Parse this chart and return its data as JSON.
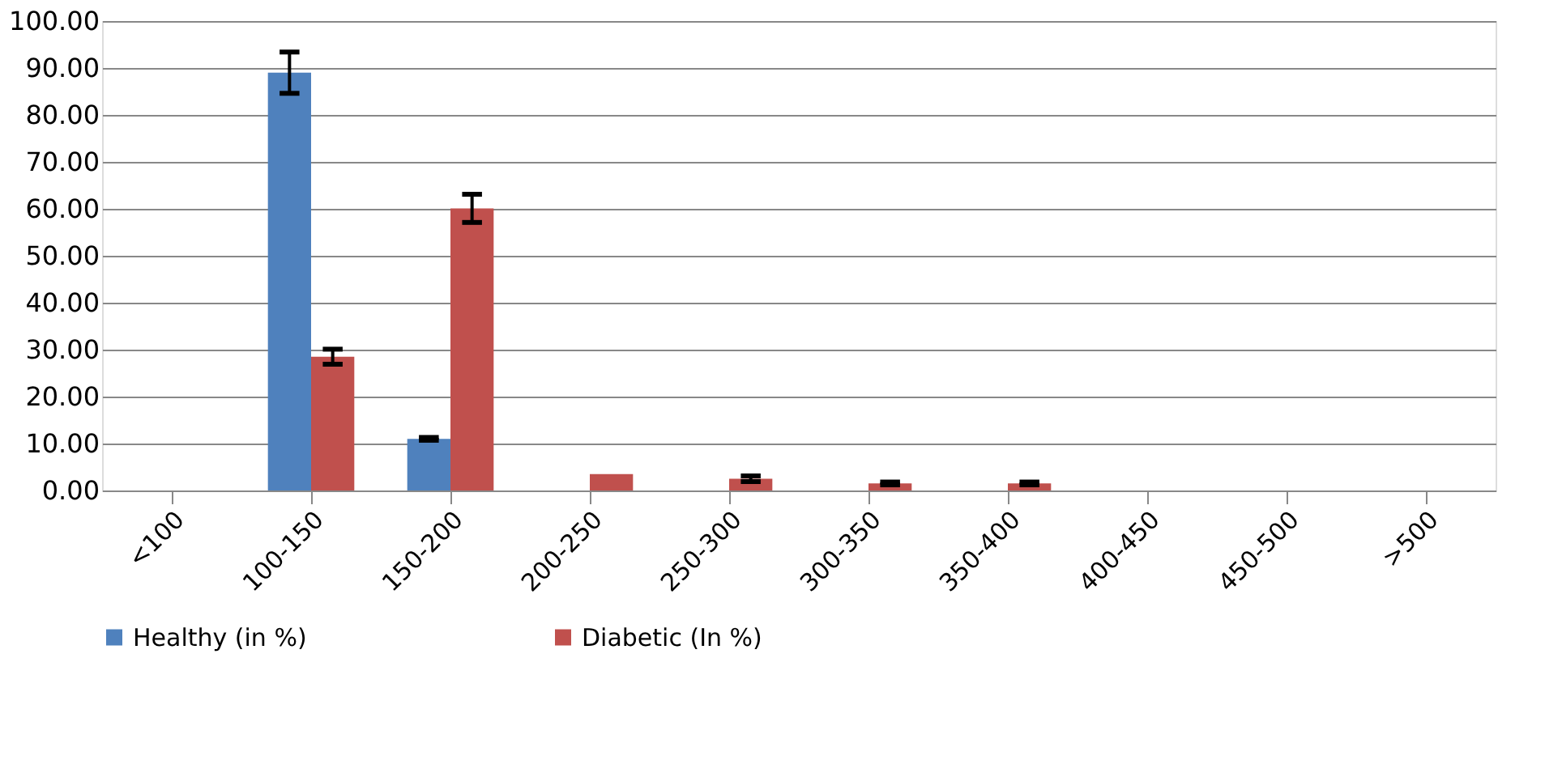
{
  "chart_data": {
    "type": "bar",
    "categories": [
      "<100",
      "100-150",
      "150-200",
      "200-250",
      "250-300",
      "300-350",
      "350-400",
      "400-450",
      "450-500",
      ">500"
    ],
    "series": [
      {
        "name": "Healthy (in %)",
        "color": "#4f81bd",
        "values": [
          0,
          89.0,
          11.0,
          0,
          0,
          0,
          0,
          0,
          0,
          0
        ],
        "errors": [
          null,
          4.4,
          0.3,
          null,
          null,
          null,
          null,
          null,
          null,
          null
        ]
      },
      {
        "name": "Diabetic (In %)",
        "color": "#c0504d",
        "values": [
          0,
          28.5,
          60.1,
          3.5,
          2.5,
          1.5,
          1.5,
          0,
          0,
          0
        ],
        "errors": [
          null,
          1.6,
          3.0,
          null,
          0.6,
          0.3,
          0.3,
          null,
          null,
          null
        ]
      }
    ],
    "ylim": [
      0,
      100
    ],
    "yticks": [
      {
        "value": 0,
        "label": "0.00"
      },
      {
        "value": 10,
        "label": "10.00"
      },
      {
        "value": 20,
        "label": "20.00"
      },
      {
        "value": 30,
        "label": "30.00"
      },
      {
        "value": 40,
        "label": "40.00"
      },
      {
        "value": 50,
        "label": "50.00"
      },
      {
        "value": 60,
        "label": "60.00"
      },
      {
        "value": 70,
        "label": "70.00"
      },
      {
        "value": 80,
        "label": "80.00"
      },
      {
        "value": 90,
        "label": "90.00"
      },
      {
        "value": 100,
        "label": "100.00"
      }
    ],
    "grid": "y",
    "legend": "bottom"
  }
}
